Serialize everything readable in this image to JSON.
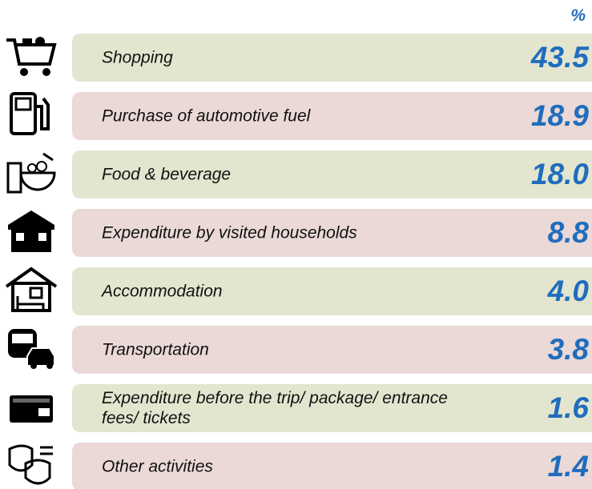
{
  "unit": "%",
  "rows": [
    {
      "label": "Shopping",
      "value": "43.5"
    },
    {
      "label": "Purchase of automotive fuel",
      "value": "18.9"
    },
    {
      "label": "Food & beverage",
      "value": "18.0"
    },
    {
      "label": "Expenditure by visited households",
      "value": "8.8"
    },
    {
      "label": "Accommodation",
      "value": "4.0"
    },
    {
      "label": "Transportation",
      "value": "3.8"
    },
    {
      "label": "Expenditure before the trip/ package/ entrance fees/ tickets",
      "value": "1.6"
    },
    {
      "label": "Other activities",
      "value": "1.4"
    }
  ]
}
